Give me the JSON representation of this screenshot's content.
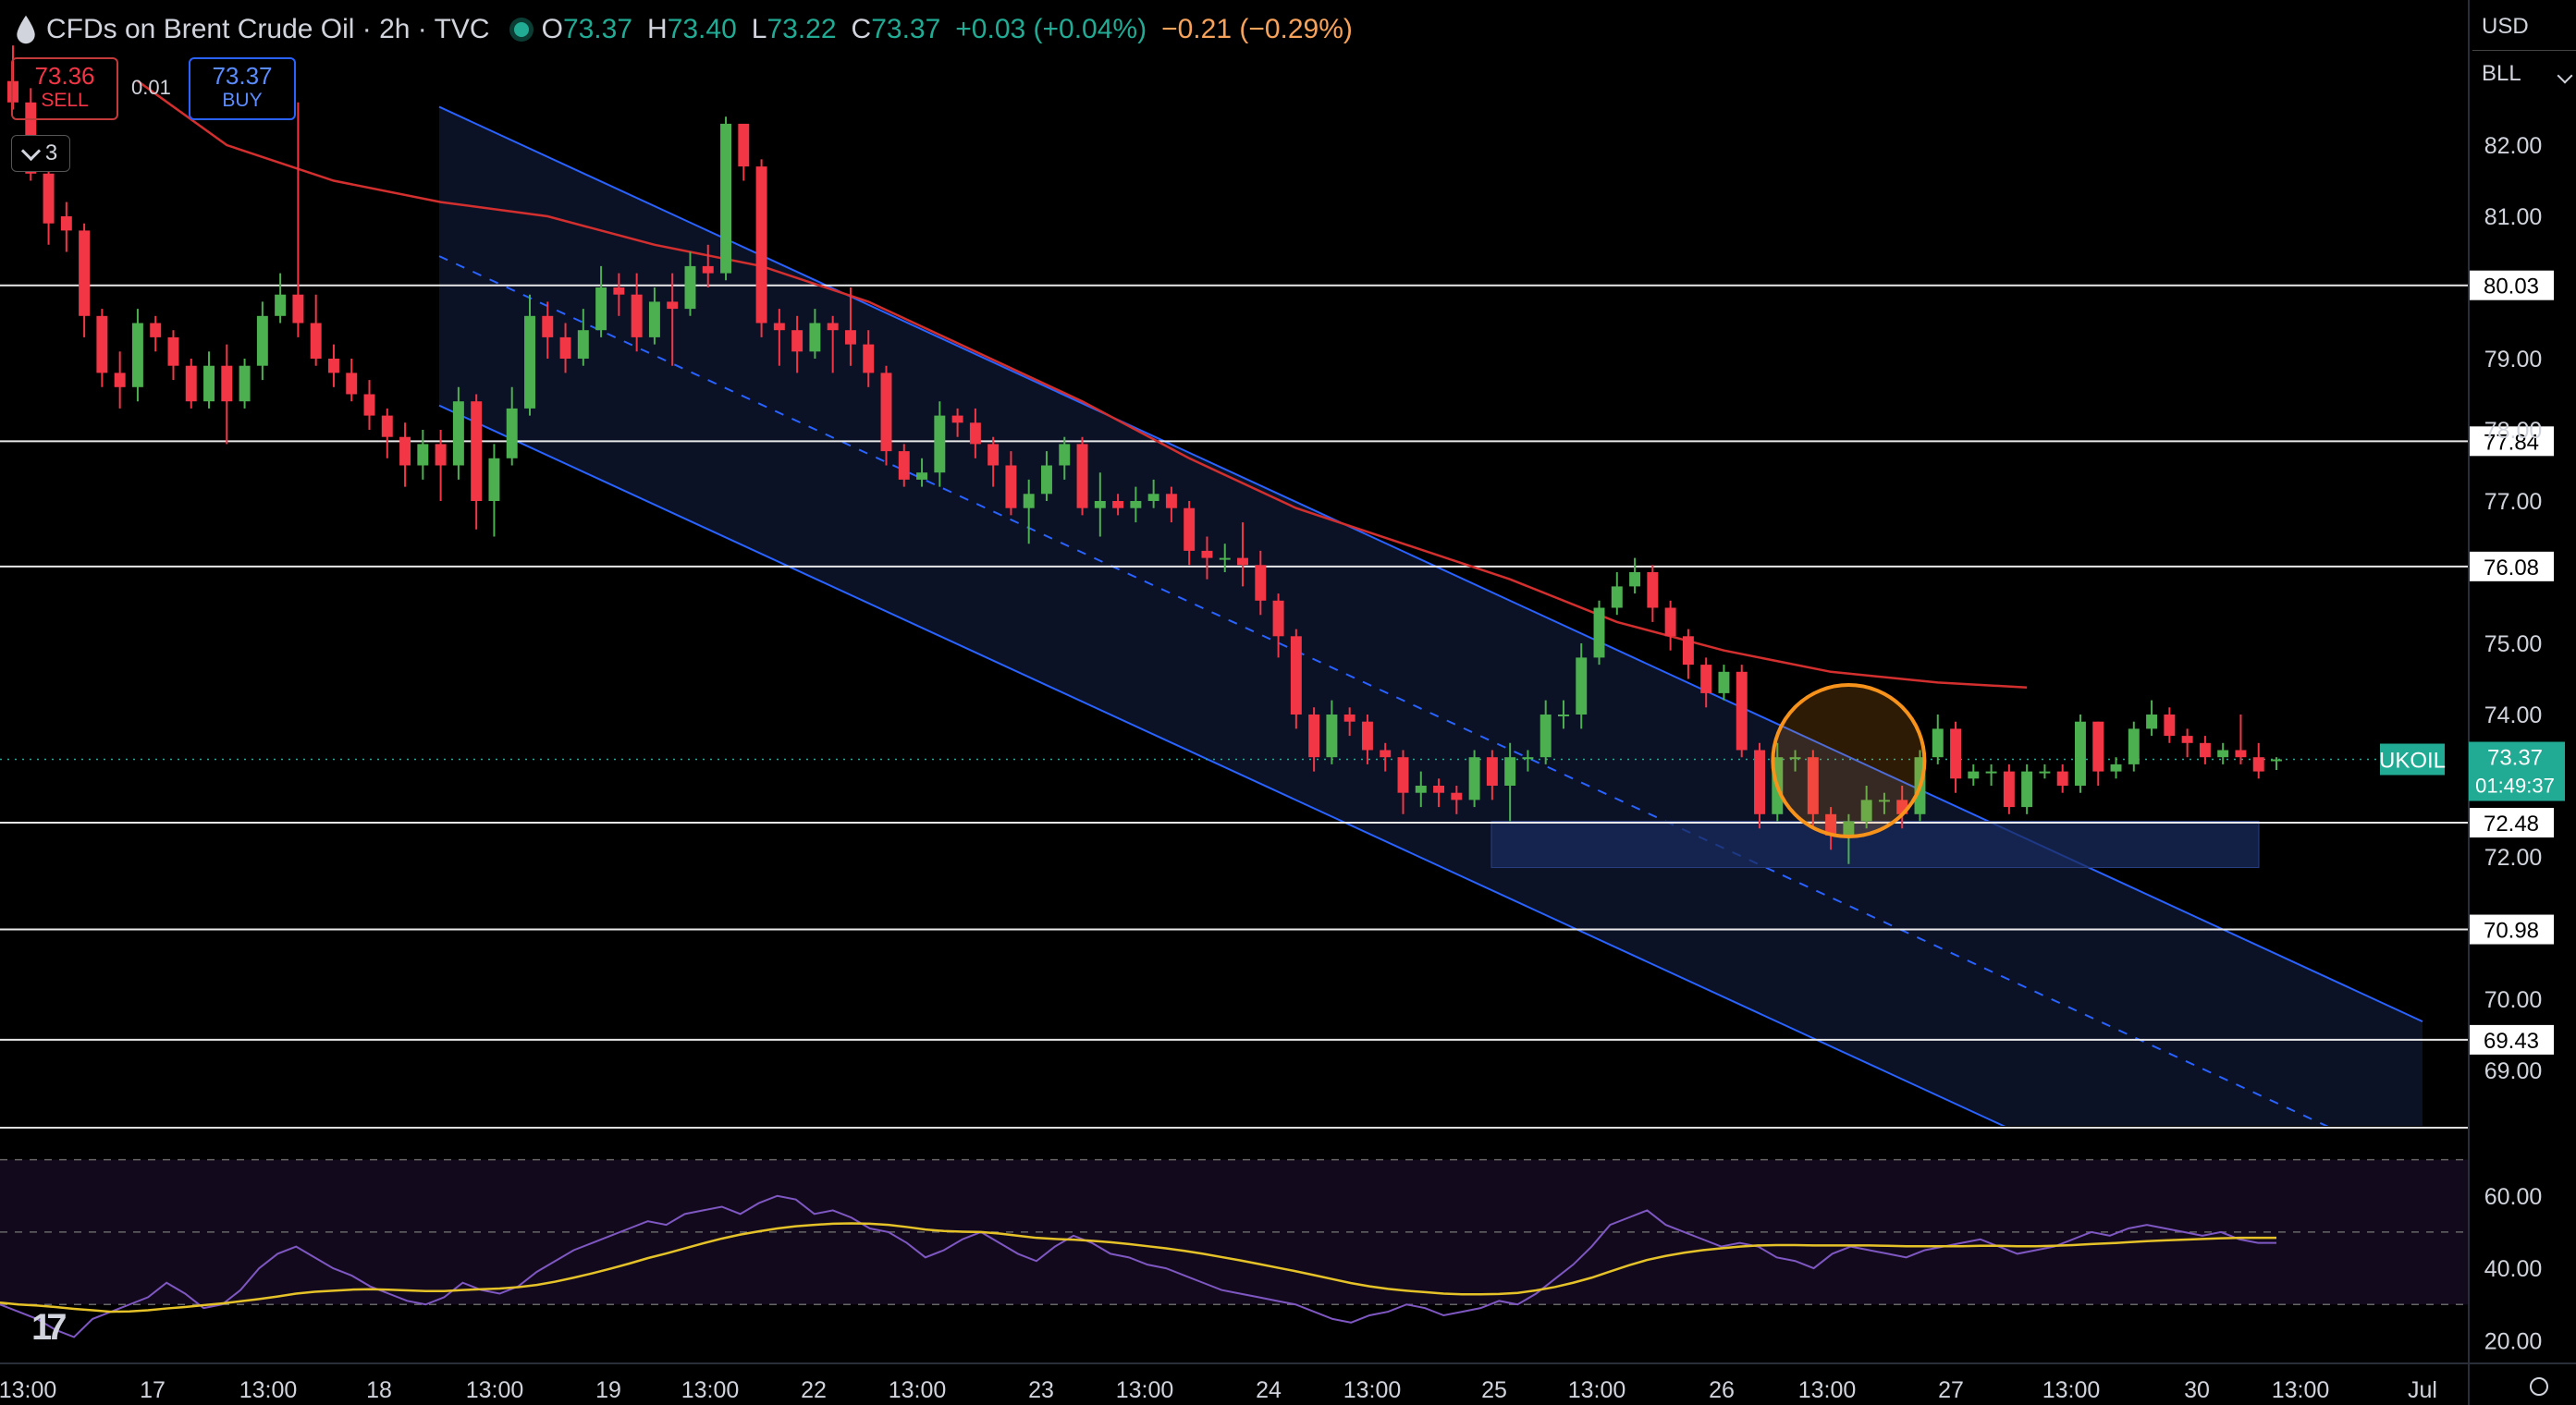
{
  "header": {
    "title": "CFDs on Brent Crude Oil · 2h · TVC",
    "ohlc": [
      {
        "k": "O",
        "v": "73.37"
      },
      {
        "k": "H",
        "v": "73.40"
      },
      {
        "k": "L",
        "v": "73.22"
      },
      {
        "k": "C",
        "v": "73.37"
      }
    ],
    "change": "+0.03 (+0.04%)",
    "change2": "−0.21 (−0.29%)"
  },
  "trade": {
    "sell_price": "73.36",
    "sell_label": "SELL",
    "buy_price": "73.37",
    "buy_label": "BUY",
    "spread": "0.01"
  },
  "indicator_count": "3",
  "currency": "USD",
  "unit": "BLL",
  "colors": {
    "up": "#4caf50",
    "down": "#f23645",
    "ma": "#d32f2f",
    "channel": "#2962ff",
    "rsi": "#7e57c2",
    "rsi_ma": "#e6c229",
    "highlight": "#f7931a",
    "background": "#000000"
  },
  "chart_data": [
    {
      "type": "candlestick",
      "symbol": "UKOIL",
      "timeframe": "2h",
      "last_price": "73.37",
      "countdown": "01:49:37",
      "ylim": [
        68.0,
        83.0
      ],
      "y_ticks": [
        "82.00",
        "81.00",
        "79.00",
        "78.00",
        "77.00",
        "75.00",
        "74.00",
        "72.00",
        "70.00",
        "69.00"
      ],
      "x_ticks": [
        "13:00",
        "17",
        "13:00",
        "18",
        "13:00",
        "19",
        "13:00",
        "22",
        "13:00",
        "23",
        "13:00",
        "24",
        "13:00",
        "25",
        "13:00",
        "26",
        "13:00",
        "27",
        "13:00",
        "30",
        "13:00",
        "Jul"
      ],
      "horizontal_levels": [
        80.03,
        77.84,
        76.08,
        72.48,
        70.98,
        69.43
      ],
      "support_zone": [
        71.85,
        72.5
      ],
      "descending_channel": {
        "upper": [
          [
            0,
            85.3
          ],
          [
            124,
            70.98
          ]
        ],
        "lower": [
          [
            0,
            81.1
          ],
          [
            124,
            66.8
          ]
        ]
      },
      "ma_series": [
        [
          7,
          82.9
        ],
        [
          12,
          82.0
        ],
        [
          18,
          81.5
        ],
        [
          24,
          81.2
        ],
        [
          30,
          81.0
        ],
        [
          36,
          80.6
        ],
        [
          42,
          80.3
        ],
        [
          48,
          79.8
        ],
        [
          54,
          79.1
        ],
        [
          60,
          78.4
        ],
        [
          66,
          77.6
        ],
        [
          72,
          76.9
        ],
        [
          78,
          76.4
        ],
        [
          84,
          75.9
        ],
        [
          90,
          75.3
        ],
        [
          96,
          74.9
        ],
        [
          102,
          74.6
        ],
        [
          108,
          74.45
        ],
        [
          113,
          74.38
        ]
      ],
      "highlight_circle": {
        "x": 103,
        "y": 73.35
      },
      "candles": [
        [
          82.9,
          82.6,
          83.4,
          82.5
        ],
        [
          82.6,
          81.6,
          82.8,
          81.5
        ],
        [
          81.6,
          80.9,
          81.7,
          80.6
        ],
        [
          81.0,
          80.8,
          81.2,
          80.5
        ],
        [
          80.8,
          79.6,
          80.9,
          79.3
        ],
        [
          79.6,
          78.8,
          79.7,
          78.6
        ],
        [
          78.8,
          78.6,
          79.1,
          78.3
        ],
        [
          78.6,
          79.5,
          79.7,
          78.4
        ],
        [
          79.5,
          79.3,
          79.6,
          79.1
        ],
        [
          79.3,
          78.9,
          79.4,
          78.7
        ],
        [
          78.9,
          78.4,
          79.0,
          78.3
        ],
        [
          78.4,
          78.9,
          79.1,
          78.3
        ],
        [
          78.9,
          78.4,
          79.2,
          77.8
        ],
        [
          78.4,
          78.9,
          79.0,
          78.3
        ],
        [
          78.9,
          79.6,
          79.8,
          78.7
        ],
        [
          79.6,
          79.9,
          80.2,
          79.5
        ],
        [
          79.9,
          79.5,
          82.6,
          79.3
        ],
        [
          79.5,
          79.0,
          79.9,
          78.9
        ],
        [
          79.0,
          78.8,
          79.2,
          78.6
        ],
        [
          78.8,
          78.5,
          79.0,
          78.4
        ],
        [
          78.5,
          78.2,
          78.7,
          78.0
        ],
        [
          78.2,
          77.9,
          78.3,
          77.6
        ],
        [
          77.9,
          77.5,
          78.1,
          77.2
        ],
        [
          77.5,
          77.8,
          78.0,
          77.3
        ],
        [
          77.8,
          77.5,
          78.0,
          77.0
        ],
        [
          77.5,
          78.4,
          78.6,
          77.3
        ],
        [
          78.4,
          77.0,
          78.5,
          76.6
        ],
        [
          77.0,
          77.6,
          77.8,
          76.5
        ],
        [
          77.6,
          78.3,
          78.6,
          77.5
        ],
        [
          78.3,
          79.6,
          79.9,
          78.2
        ],
        [
          79.6,
          79.3,
          79.8,
          79.0
        ],
        [
          79.3,
          79.0,
          79.5,
          78.8
        ],
        [
          79.0,
          79.4,
          79.7,
          78.9
        ],
        [
          79.4,
          80.0,
          80.3,
          79.3
        ],
        [
          80.0,
          79.9,
          80.2,
          79.6
        ],
        [
          79.9,
          79.3,
          80.2,
          79.1
        ],
        [
          79.3,
          79.8,
          80.0,
          79.2
        ],
        [
          79.8,
          79.7,
          80.2,
          78.9
        ],
        [
          79.7,
          80.3,
          80.5,
          79.6
        ],
        [
          80.3,
          80.2,
          80.6,
          80.0
        ],
        [
          80.2,
          82.3,
          82.4,
          80.1
        ],
        [
          82.3,
          81.7,
          81.8,
          81.5
        ],
        [
          81.7,
          79.5,
          81.8,
          79.3
        ],
        [
          79.5,
          79.4,
          79.7,
          78.9
        ],
        [
          79.4,
          79.1,
          79.6,
          78.8
        ],
        [
          79.1,
          79.5,
          79.7,
          79.0
        ],
        [
          79.5,
          79.4,
          79.6,
          78.8
        ],
        [
          79.4,
          79.2,
          80.0,
          78.9
        ],
        [
          79.2,
          78.8,
          79.4,
          78.6
        ],
        [
          78.8,
          77.7,
          78.9,
          77.5
        ],
        [
          77.7,
          77.3,
          77.8,
          77.2
        ],
        [
          77.3,
          77.4,
          77.6,
          77.2
        ],
        [
          77.4,
          78.2,
          78.4,
          77.2
        ],
        [
          78.2,
          78.1,
          78.3,
          77.9
        ],
        [
          78.1,
          77.8,
          78.3,
          77.6
        ],
        [
          77.8,
          77.5,
          77.9,
          77.2
        ],
        [
          77.5,
          76.9,
          77.7,
          76.8
        ],
        [
          76.9,
          77.1,
          77.3,
          76.4
        ],
        [
          77.1,
          77.5,
          77.7,
          77.0
        ],
        [
          77.5,
          77.8,
          77.9,
          77.3
        ],
        [
          77.8,
          76.9,
          77.9,
          76.8
        ],
        [
          76.9,
          77.0,
          77.4,
          76.5
        ],
        [
          77.0,
          76.9,
          77.1,
          76.8
        ],
        [
          76.9,
          77.0,
          77.2,
          76.7
        ],
        [
          77.0,
          77.1,
          77.3,
          76.9
        ],
        [
          77.1,
          76.9,
          77.2,
          76.7
        ],
        [
          76.9,
          76.3,
          77.0,
          76.1
        ],
        [
          76.3,
          76.2,
          76.5,
          75.9
        ],
        [
          76.2,
          76.2,
          76.4,
          76.0
        ],
        [
          76.2,
          76.1,
          76.7,
          75.8
        ],
        [
          76.1,
          75.6,
          76.3,
          75.4
        ],
        [
          75.6,
          75.1,
          75.7,
          74.8
        ],
        [
          75.1,
          74.0,
          75.2,
          73.8
        ],
        [
          74.0,
          73.4,
          74.1,
          73.2
        ],
        [
          73.4,
          74.0,
          74.2,
          73.3
        ],
        [
          74.0,
          73.9,
          74.1,
          73.7
        ],
        [
          73.9,
          73.5,
          74.0,
          73.3
        ],
        [
          73.5,
          73.4,
          73.6,
          73.2
        ],
        [
          73.4,
          72.9,
          73.5,
          72.6
        ],
        [
          72.9,
          73.0,
          73.2,
          72.7
        ],
        [
          73.0,
          72.9,
          73.1,
          72.7
        ],
        [
          72.9,
          72.8,
          73.0,
          72.6
        ],
        [
          72.8,
          73.4,
          73.5,
          72.7
        ],
        [
          73.4,
          73.0,
          73.5,
          72.8
        ],
        [
          73.0,
          73.4,
          73.6,
          72.5
        ],
        [
          73.4,
          73.4,
          73.5,
          73.2
        ],
        [
          73.4,
          74.0,
          74.2,
          73.3
        ],
        [
          74.0,
          74.0,
          74.2,
          73.8
        ],
        [
          74.0,
          74.8,
          75.0,
          73.8
        ],
        [
          74.8,
          75.5,
          75.6,
          74.7
        ],
        [
          75.5,
          75.8,
          76.0,
          75.4
        ],
        [
          75.8,
          76.0,
          76.2,
          75.7
        ],
        [
          76.0,
          75.5,
          76.1,
          75.3
        ],
        [
          75.5,
          75.1,
          75.6,
          74.9
        ],
        [
          75.1,
          74.7,
          75.2,
          74.5
        ],
        [
          74.7,
          74.3,
          74.8,
          74.1
        ],
        [
          74.3,
          74.6,
          74.7,
          74.2
        ],
        [
          74.6,
          73.5,
          74.7,
          73.4
        ],
        [
          73.5,
          72.6,
          73.6,
          72.4
        ],
        [
          72.6,
          73.4,
          73.6,
          72.5
        ],
        [
          73.4,
          73.4,
          73.5,
          73.2
        ],
        [
          73.4,
          72.6,
          73.5,
          72.4
        ],
        [
          72.6,
          72.3,
          72.7,
          72.1
        ],
        [
          72.3,
          72.5,
          72.6,
          71.9
        ],
        [
          72.5,
          72.8,
          73.0,
          72.4
        ],
        [
          72.8,
          72.8,
          72.9,
          72.6
        ],
        [
          72.8,
          72.6,
          73.0,
          72.4
        ],
        [
          72.6,
          73.4,
          73.5,
          72.5
        ],
        [
          73.4,
          73.8,
          74.0,
          73.3
        ],
        [
          73.8,
          73.1,
          73.9,
          72.9
        ],
        [
          73.1,
          73.2,
          73.3,
          73.0
        ],
        [
          73.2,
          73.2,
          73.3,
          73.0
        ],
        [
          73.2,
          72.7,
          73.3,
          72.6
        ],
        [
          72.7,
          73.2,
          73.3,
          72.6
        ],
        [
          73.2,
          73.2,
          73.3,
          73.1
        ],
        [
          73.2,
          73.0,
          73.3,
          72.9
        ],
        [
          73.0,
          73.9,
          74.0,
          72.9
        ],
        [
          73.9,
          73.2,
          73.9,
          73.0
        ],
        [
          73.2,
          73.3,
          73.4,
          73.1
        ],
        [
          73.3,
          73.8,
          73.9,
          73.2
        ],
        [
          73.8,
          74.0,
          74.2,
          73.7
        ],
        [
          74.0,
          73.7,
          74.1,
          73.6
        ],
        [
          73.7,
          73.6,
          73.8,
          73.4
        ],
        [
          73.6,
          73.4,
          73.7,
          73.3
        ],
        [
          73.4,
          73.5,
          73.6,
          73.3
        ],
        [
          73.5,
          73.4,
          74.0,
          73.3
        ],
        [
          73.4,
          73.2,
          73.6,
          73.1
        ],
        [
          73.37,
          73.37,
          73.4,
          73.22
        ]
      ]
    },
    {
      "type": "line",
      "name": "RSI",
      "ylim": [
        15,
        75
      ],
      "y_ticks": [
        "60.00",
        "40.00",
        "20.00"
      ],
      "bands": [
        30,
        50,
        70
      ],
      "series": [
        {
          "values": [
            30,
            28,
            26,
            23,
            21,
            26,
            28,
            30,
            32,
            36,
            33,
            29,
            30,
            34,
            40,
            44,
            46,
            43,
            40,
            38,
            35,
            33,
            31,
            30,
            32,
            36,
            34,
            33,
            35,
            39,
            42,
            45,
            47,
            49,
            51,
            53,
            52,
            55,
            56,
            57,
            55,
            58,
            60,
            59,
            55,
            56,
            54,
            51,
            50,
            47,
            43,
            45,
            48,
            50,
            47,
            44,
            42,
            46,
            49,
            47,
            44,
            43,
            41,
            40,
            38,
            36,
            34,
            33,
            32,
            31,
            30,
            28,
            26,
            25,
            27,
            28,
            30,
            29,
            27,
            28,
            29,
            31,
            30,
            33,
            37,
            41,
            46,
            52,
            54,
            56,
            52,
            50,
            48,
            46,
            47,
            46,
            43,
            42,
            40,
            44,
            46,
            45,
            44,
            43,
            45,
            46,
            47,
            48,
            46,
            44,
            45,
            46,
            48,
            50,
            49,
            51,
            52,
            51,
            50,
            49,
            50,
            48,
            47,
            47
          ]
        }
      ],
      "ma_values": [
        30.5,
        30,
        29.7,
        29.3,
        28.8,
        28.4,
        28,
        28.1,
        28.4,
        28.9,
        29.3,
        29.8,
        30.3,
        30.9,
        31.5,
        32.2,
        33,
        33.5,
        33.8,
        34.1,
        34.2,
        34.1,
        33.9,
        33.7,
        33.7,
        34,
        34.2,
        34.4,
        34.8,
        35.4,
        36.3,
        37.4,
        38.6,
        39.9,
        41.3,
        42.8,
        44.1,
        45.5,
        46.9,
        48.2,
        49.3,
        50.2,
        51,
        51.6,
        52,
        52.3,
        52.4,
        52.3,
        52,
        51.4,
        50.7,
        50.3,
        50.1,
        50,
        49.6,
        49,
        48.4,
        48.1,
        47.9,
        47.6,
        47.2,
        46.7,
        46.1,
        45.5,
        44.8,
        44,
        43.1,
        42.2,
        41.2,
        40.2,
        39.2,
        38.1,
        37,
        35.9,
        35,
        34.3,
        33.8,
        33.4,
        33,
        32.8,
        32.8,
        32.9,
        33.2,
        33.9,
        34.8,
        36,
        37.4,
        39.1,
        40.8,
        42.3,
        43.4,
        44.3,
        45,
        45.5,
        46,
        46.3,
        46.4,
        46.4,
        46.3,
        46.3,
        46.3,
        46.3,
        46.2,
        46.1,
        46.1,
        46.1,
        46.1,
        46.2,
        46.2,
        46.1,
        46.1,
        46.2,
        46.4,
        46.7,
        46.9,
        47.2,
        47.5,
        47.7,
        47.9,
        48.1,
        48.3,
        48.4,
        48.4,
        48.4
      ]
    }
  ]
}
